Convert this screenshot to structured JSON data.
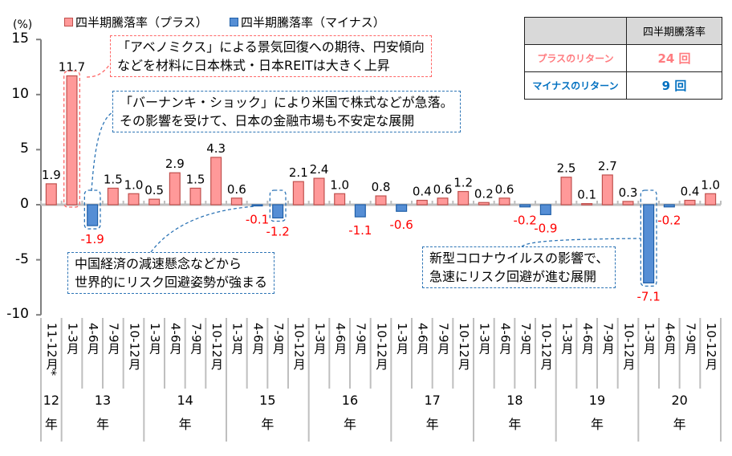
{
  "legend": {
    "unit": "(%)",
    "items": [
      {
        "label": "四半期騰落率（プラス）",
        "color": "#FF9999",
        "border": "#C0504D"
      },
      {
        "label": "四半期騰落率（マイナス）",
        "color": "#558ED5",
        "border": "#1F5FA8"
      }
    ]
  },
  "summary_table": {
    "header": [
      "",
      "四半期騰落率"
    ],
    "rows": [
      {
        "label": "プラスのリターン",
        "value": "24 回",
        "color": "#FF7C80"
      },
      {
        "label": "マイナスのリターン",
        "value": "9 回",
        "color": "#0070C0"
      }
    ]
  },
  "annotations": [
    {
      "lines": [
        "「アベノミクス」による景気回復への期待、円安傾向",
        "などを材料に日本株式・日本REITは大きく上昇"
      ],
      "style": "pink"
    },
    {
      "lines": [
        "「バーナンキ・ショック」により米国で株式などが急落。",
        "その影響を受けて、日本の金融市場も不安定な展開"
      ],
      "style": "blue"
    },
    {
      "lines": [
        "中国経済の減速懸念などから",
        "世界的にリスク回避姿勢が強まる"
      ],
      "style": "blue"
    },
    {
      "lines": [
        "新型コロナウイルスの影響で、",
        "急速にリスク回避が進む展開"
      ],
      "style": "blue"
    }
  ],
  "colors": {
    "positive_fill": "#FF9999",
    "positive_border": "#C0504D",
    "negative_fill": "#558ED5",
    "negative_border": "#1F5FA8",
    "negative_label": "#FF0000",
    "axis": "#7F7F7F",
    "gridline": "#BFBFBF"
  },
  "chart_data": {
    "type": "bar",
    "title": "",
    "xlabel": "",
    "ylabel": "(%)",
    "ylim": [
      -10,
      15
    ],
    "yticks": [
      15,
      10,
      5,
      0,
      -5,
      -10
    ],
    "grid": false,
    "legend_position": "top",
    "categories": [
      "11-12月*",
      "1-3月",
      "4-6月",
      "7-9月",
      "10-12月",
      "1-3月",
      "4-6月",
      "7-9月",
      "10-12月",
      "1-3月",
      "4-6月",
      "7-9月",
      "10-12月",
      "1-3月",
      "4-6月",
      "7-9月",
      "10-12月",
      "1-3月",
      "4-6月",
      "7-9月",
      "10-12月",
      "1-3月",
      "4-6月",
      "7-9月",
      "10-12月",
      "1-3月",
      "4-6月",
      "7-9月",
      "10-12月",
      "1-3月",
      "4-6月",
      "7-9月",
      "10-12月"
    ],
    "year_groups": [
      {
        "label": "12",
        "suffix": "年",
        "start": 0,
        "count": 1
      },
      {
        "label": "13",
        "suffix": "年",
        "start": 1,
        "count": 4
      },
      {
        "label": "14",
        "suffix": "年",
        "start": 5,
        "count": 4
      },
      {
        "label": "15",
        "suffix": "年",
        "start": 9,
        "count": 4
      },
      {
        "label": "16",
        "suffix": "年",
        "start": 13,
        "count": 4
      },
      {
        "label": "17",
        "suffix": "年",
        "start": 17,
        "count": 4
      },
      {
        "label": "18",
        "suffix": "年",
        "start": 21,
        "count": 4
      },
      {
        "label": "19",
        "suffix": "年",
        "start": 25,
        "count": 4
      },
      {
        "label": "20",
        "suffix": "年",
        "start": 29,
        "count": 4
      }
    ],
    "values": [
      1.9,
      11.7,
      -1.9,
      1.5,
      1.0,
      0.5,
      2.9,
      1.5,
      4.3,
      0.6,
      -0.1,
      -1.2,
      2.1,
      2.4,
      1.0,
      -1.1,
      0.8,
      -0.6,
      0.4,
      0.6,
      1.2,
      0.2,
      0.6,
      -0.2,
      -0.9,
      2.5,
      0.1,
      2.7,
      0.3,
      -7.1,
      -0.2,
      0.4,
      1.0
    ],
    "series": [
      {
        "name": "四半期騰落率（プラス）",
        "values": [
          1.9,
          11.7,
          null,
          1.5,
          1.0,
          0.5,
          2.9,
          1.5,
          4.3,
          0.6,
          null,
          null,
          2.1,
          2.4,
          1.0,
          null,
          0.8,
          null,
          0.4,
          0.6,
          1.2,
          0.2,
          0.6,
          null,
          null,
          2.5,
          0.1,
          2.7,
          0.3,
          null,
          null,
          0.4,
          1.0
        ]
      },
      {
        "name": "四半期騰落率（マイナス）",
        "values": [
          null,
          null,
          -1.9,
          null,
          null,
          null,
          null,
          null,
          null,
          null,
          -0.1,
          -1.2,
          null,
          null,
          null,
          -1.1,
          null,
          -0.6,
          null,
          null,
          null,
          null,
          null,
          -0.2,
          -0.9,
          null,
          null,
          null,
          null,
          -7.1,
          -0.2,
          null,
          null
        ]
      }
    ],
    "highlighted_indices": [
      1,
      2,
      11,
      29
    ]
  }
}
